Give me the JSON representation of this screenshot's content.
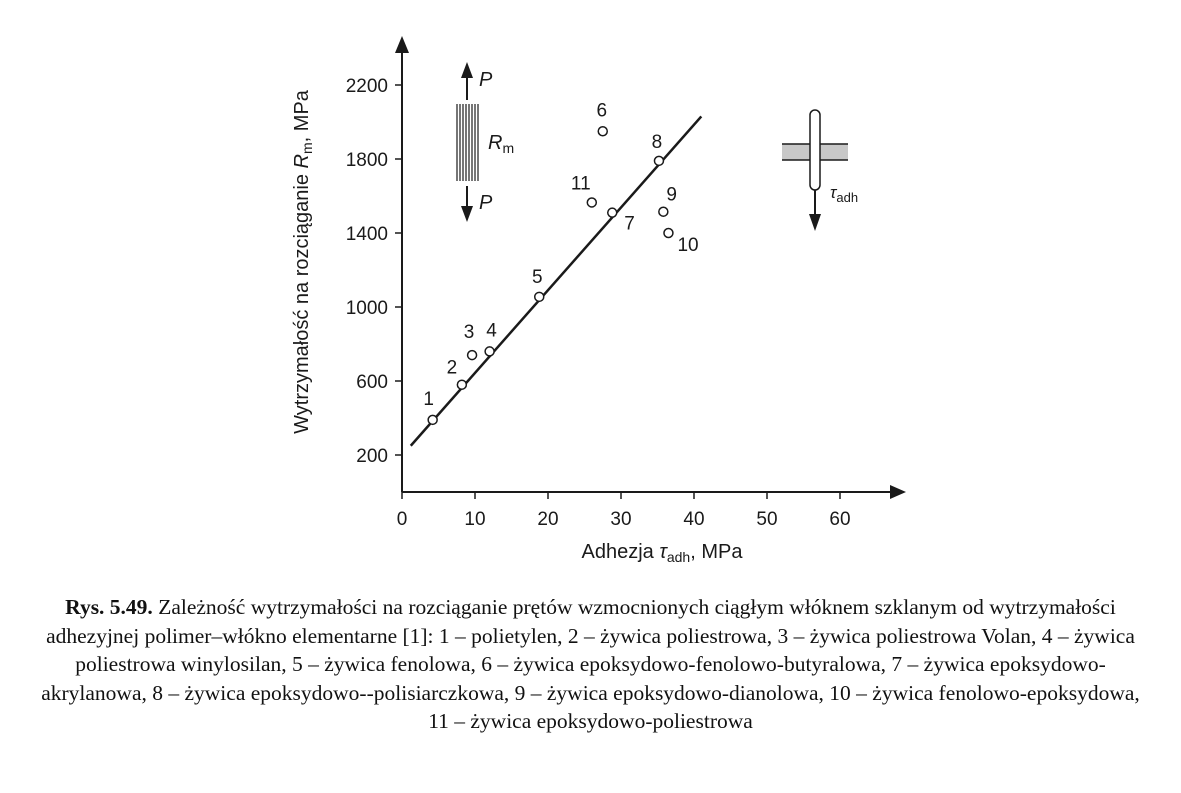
{
  "chart_data": {
    "type": "scatter",
    "xlabel": "Adhezja τadh, MPa",
    "xlabel_parts": {
      "main": "Adhezja ",
      "symbol": "τ",
      "sub": "adh",
      "unit": ", MPa"
    },
    "ylabel": "Wytrzymałość na rozciąganie Rm, MPa",
    "ylabel_parts": {
      "main": "Wytrzymałość na rozciąganie ",
      "symbol": "R",
      "sub": "m",
      "unit": ", MPa"
    },
    "xlim": [
      0,
      70
    ],
    "ylim": [
      0,
      2400
    ],
    "xticks": [
      0,
      10,
      20,
      30,
      40,
      50,
      60
    ],
    "yticks": [
      200,
      600,
      1000,
      1400,
      1800,
      2200
    ],
    "points": [
      {
        "label": "1",
        "x": 4.2,
        "y": 390
      },
      {
        "label": "2",
        "x": 8.2,
        "y": 580
      },
      {
        "label": "3",
        "x": 9.6,
        "y": 740
      },
      {
        "label": "4",
        "x": 12.0,
        "y": 760
      },
      {
        "label": "5",
        "x": 18.8,
        "y": 1055
      },
      {
        "label": "6",
        "x": 27.5,
        "y": 1950
      },
      {
        "label": "7",
        "x": 28.8,
        "y": 1510
      },
      {
        "label": "8",
        "x": 35.2,
        "y": 1790
      },
      {
        "label": "9",
        "x": 35.8,
        "y": 1515
      },
      {
        "label": "10",
        "x": 36.5,
        "y": 1400
      },
      {
        "label": "11",
        "x": 26.0,
        "y": 1565
      }
    ],
    "fit_line": {
      "x": [
        1.2,
        41.0
      ],
      "y": [
        250,
        2030
      ]
    },
    "grid": false,
    "legend": "none"
  },
  "insets": {
    "rod": {
      "force_label": "P",
      "symbol": "R",
      "sub": "m"
    },
    "pullout": {
      "symbol": "τ",
      "sub": "adh"
    }
  },
  "caption": {
    "lead": "Rys. 5.49.",
    "text": "Zależność wytrzymałości na rozciąganie prętów wzmocnionych ciągłym włóknem szklanym od wytrzymałości adhezyjnej polimer–włókno elementarne [1]: 1 – polietylen, 2 – żywica poliestrowa, 3 – żywica poliestrowa Volan, 4 – żywica poliestrowa winylosilan, 5 – żywica fenolowa, 6 – żywica epoksydowo-fenolowo-butyralowa, 7 – żywica epoksydowo-akrylanowa, 8 – żywica epoksydowo--polisiarczkowa, 9 – żywica epoksydowo-dianolowa, 10 – żywica fenolowo-epoksydowa, 11 – żywica epoksydowo-poliestrowa"
  }
}
